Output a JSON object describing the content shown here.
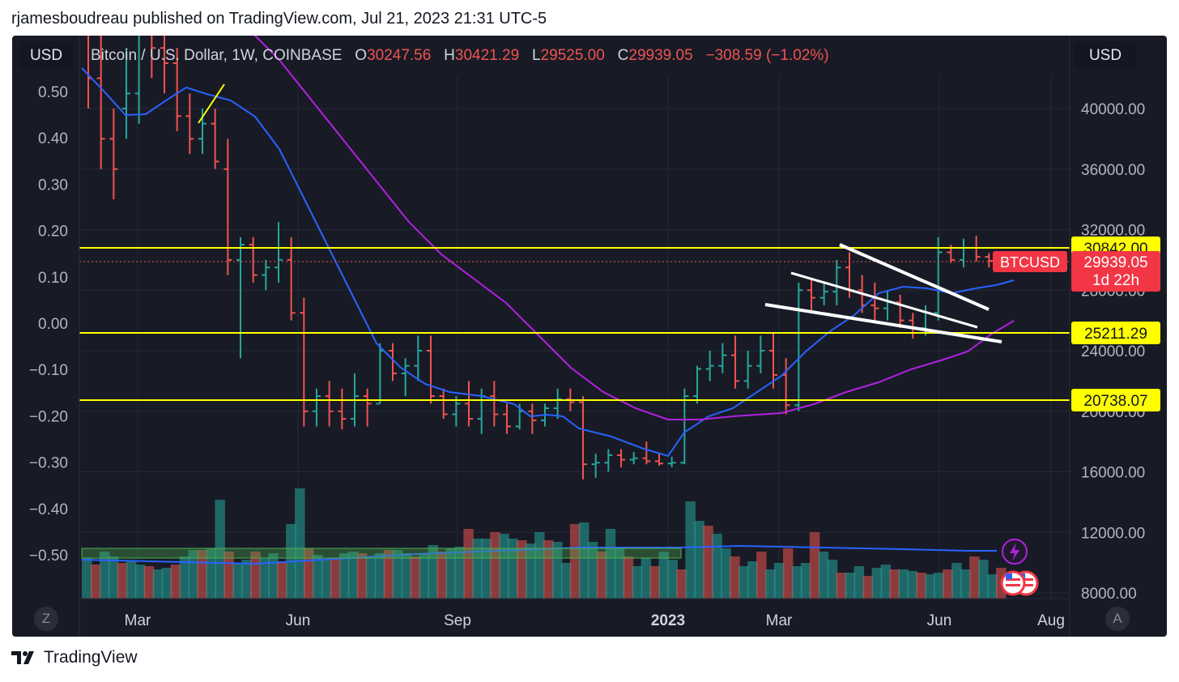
{
  "header": {
    "publisher_line": "rjamesboudreau published on TradingView.com, Jul 21, 2023 21:31 UTC-5"
  },
  "toolbar": {
    "currency_left": "USD",
    "currency_right": "USD",
    "left_circle": "Z",
    "right_circle": "A"
  },
  "legend": {
    "symbol_line": "Bitcoin / U.S. Dollar, 1W, COINBASE",
    "open_label": "O",
    "open": "30247.56",
    "high_label": "H",
    "high": "30421.29",
    "low_label": "L",
    "low": "29525.00",
    "close_label": "C",
    "close": "29939.05",
    "change": "−308.59 (−1.02%)"
  },
  "left_axis_ticks": [
    "0.50",
    "0.40",
    "0.30",
    "0.20",
    "0.10",
    "0.00",
    "−0.10",
    "−0.20",
    "−0.30",
    "−0.40",
    "−0.50"
  ],
  "right_axis_ticks": [
    "40000.00",
    "36000.00",
    "32000.00",
    "28000.00",
    "24000.00",
    "20000.00",
    "16000.00",
    "12000.00",
    "8000.00"
  ],
  "x_axis_ticks": [
    "Mar",
    "Jun",
    "Sep",
    "2023",
    "Mar",
    "Jun",
    "Aug"
  ],
  "price_labels": {
    "level_1": "30842.00",
    "symbol_tag": "BTCUSD",
    "current_price": "29939.05",
    "countdown": "1d 22h",
    "level_2": "25211.29",
    "level_3": "20738.07"
  },
  "footer": {
    "brand": "TradingView"
  },
  "colors": {
    "chart_bg": "#181b26",
    "up": "#26a69a",
    "down": "#ef5350",
    "ma_fast": "#2962ff",
    "ma_slow": "#b221e0",
    "level": "#ffff00",
    "label_red": "#f23645"
  },
  "icons": {
    "lightning": "lightning-icon",
    "flag": "us-flag-icon",
    "logo": "tradingview-logo-icon"
  }
}
